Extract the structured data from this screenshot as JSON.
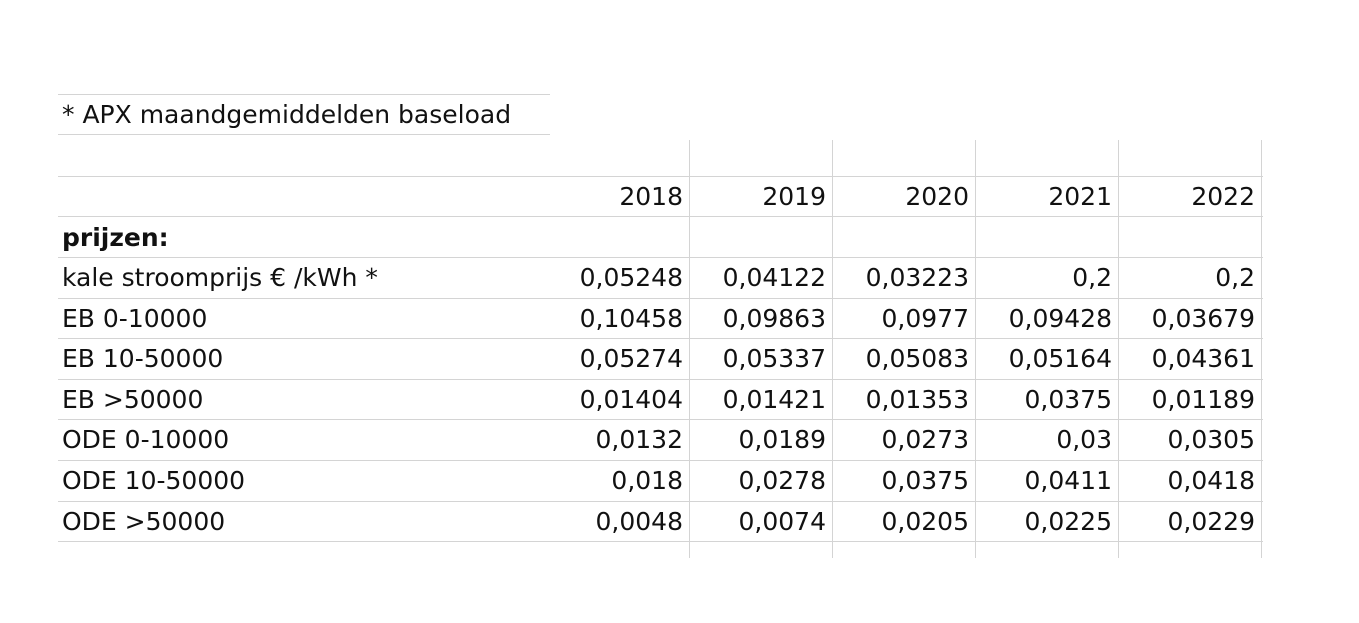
{
  "note": "* APX maandgemiddelden baseload",
  "years": [
    "2018",
    "2019",
    "2020",
    "2021",
    "2022"
  ],
  "section_label": "prijzen:",
  "rows": [
    {
      "label": "kale stroomprijs € /kWh *",
      "values": [
        "0,05248",
        "0,04122",
        "0,03223",
        "0,2",
        "0,2"
      ]
    },
    {
      "label": "EB 0-10000",
      "values": [
        "0,10458",
        "0,09863",
        "0,0977",
        "0,09428",
        "0,03679"
      ]
    },
    {
      "label": "EB 10-50000",
      "values": [
        "0,05274",
        "0,05337",
        "0,05083",
        "0,05164",
        "0,04361"
      ]
    },
    {
      "label": "EB >50000",
      "values": [
        "0,01404",
        "0,01421",
        "0,01353",
        "0,0375",
        "0,01189"
      ]
    },
    {
      "label": "ODE 0-10000",
      "values": [
        "0,0132",
        "0,0189",
        "0,0273",
        "0,03",
        "0,0305"
      ]
    },
    {
      "label": "ODE 10-50000",
      "values": [
        "0,018",
        "0,0278",
        "0,0375",
        "0,0411",
        "0,0418"
      ]
    },
    {
      "label": "ODE >50000",
      "values": [
        "0,0048",
        "0,0074",
        "0,0205",
        "0,0225",
        "0,0229"
      ]
    }
  ]
}
